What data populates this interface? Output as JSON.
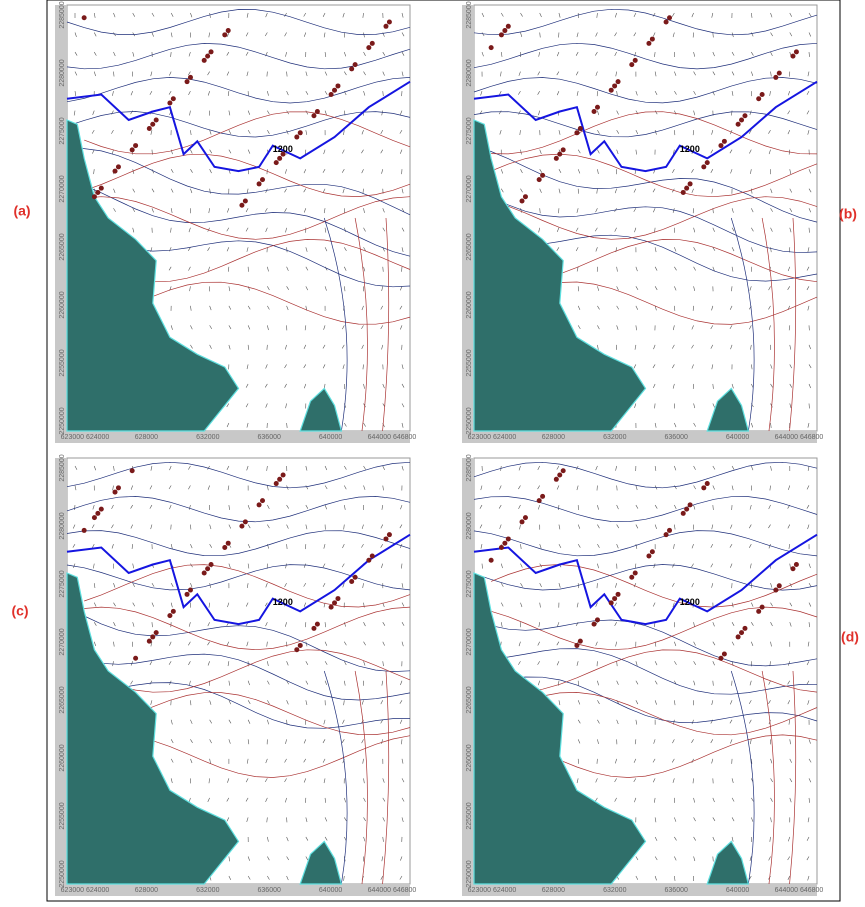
{
  "panels": [
    {
      "label": "(a)",
      "contour_label": "1200"
    },
    {
      "label": "(b)",
      "contour_label": "1200"
    },
    {
      "label": "(c)",
      "contour_label": "1200"
    },
    {
      "label": "(d)",
      "contour_label": "1200"
    }
  ],
  "xticks": [
    "623000 624000",
    "628000",
    "632000",
    "636000",
    "640000",
    "644000 646800"
  ],
  "yticks": [
    "2285000",
    "2280000",
    "2275000",
    "2270000",
    "2265000",
    "2260000",
    "2255000",
    "2250000"
  ]
}
